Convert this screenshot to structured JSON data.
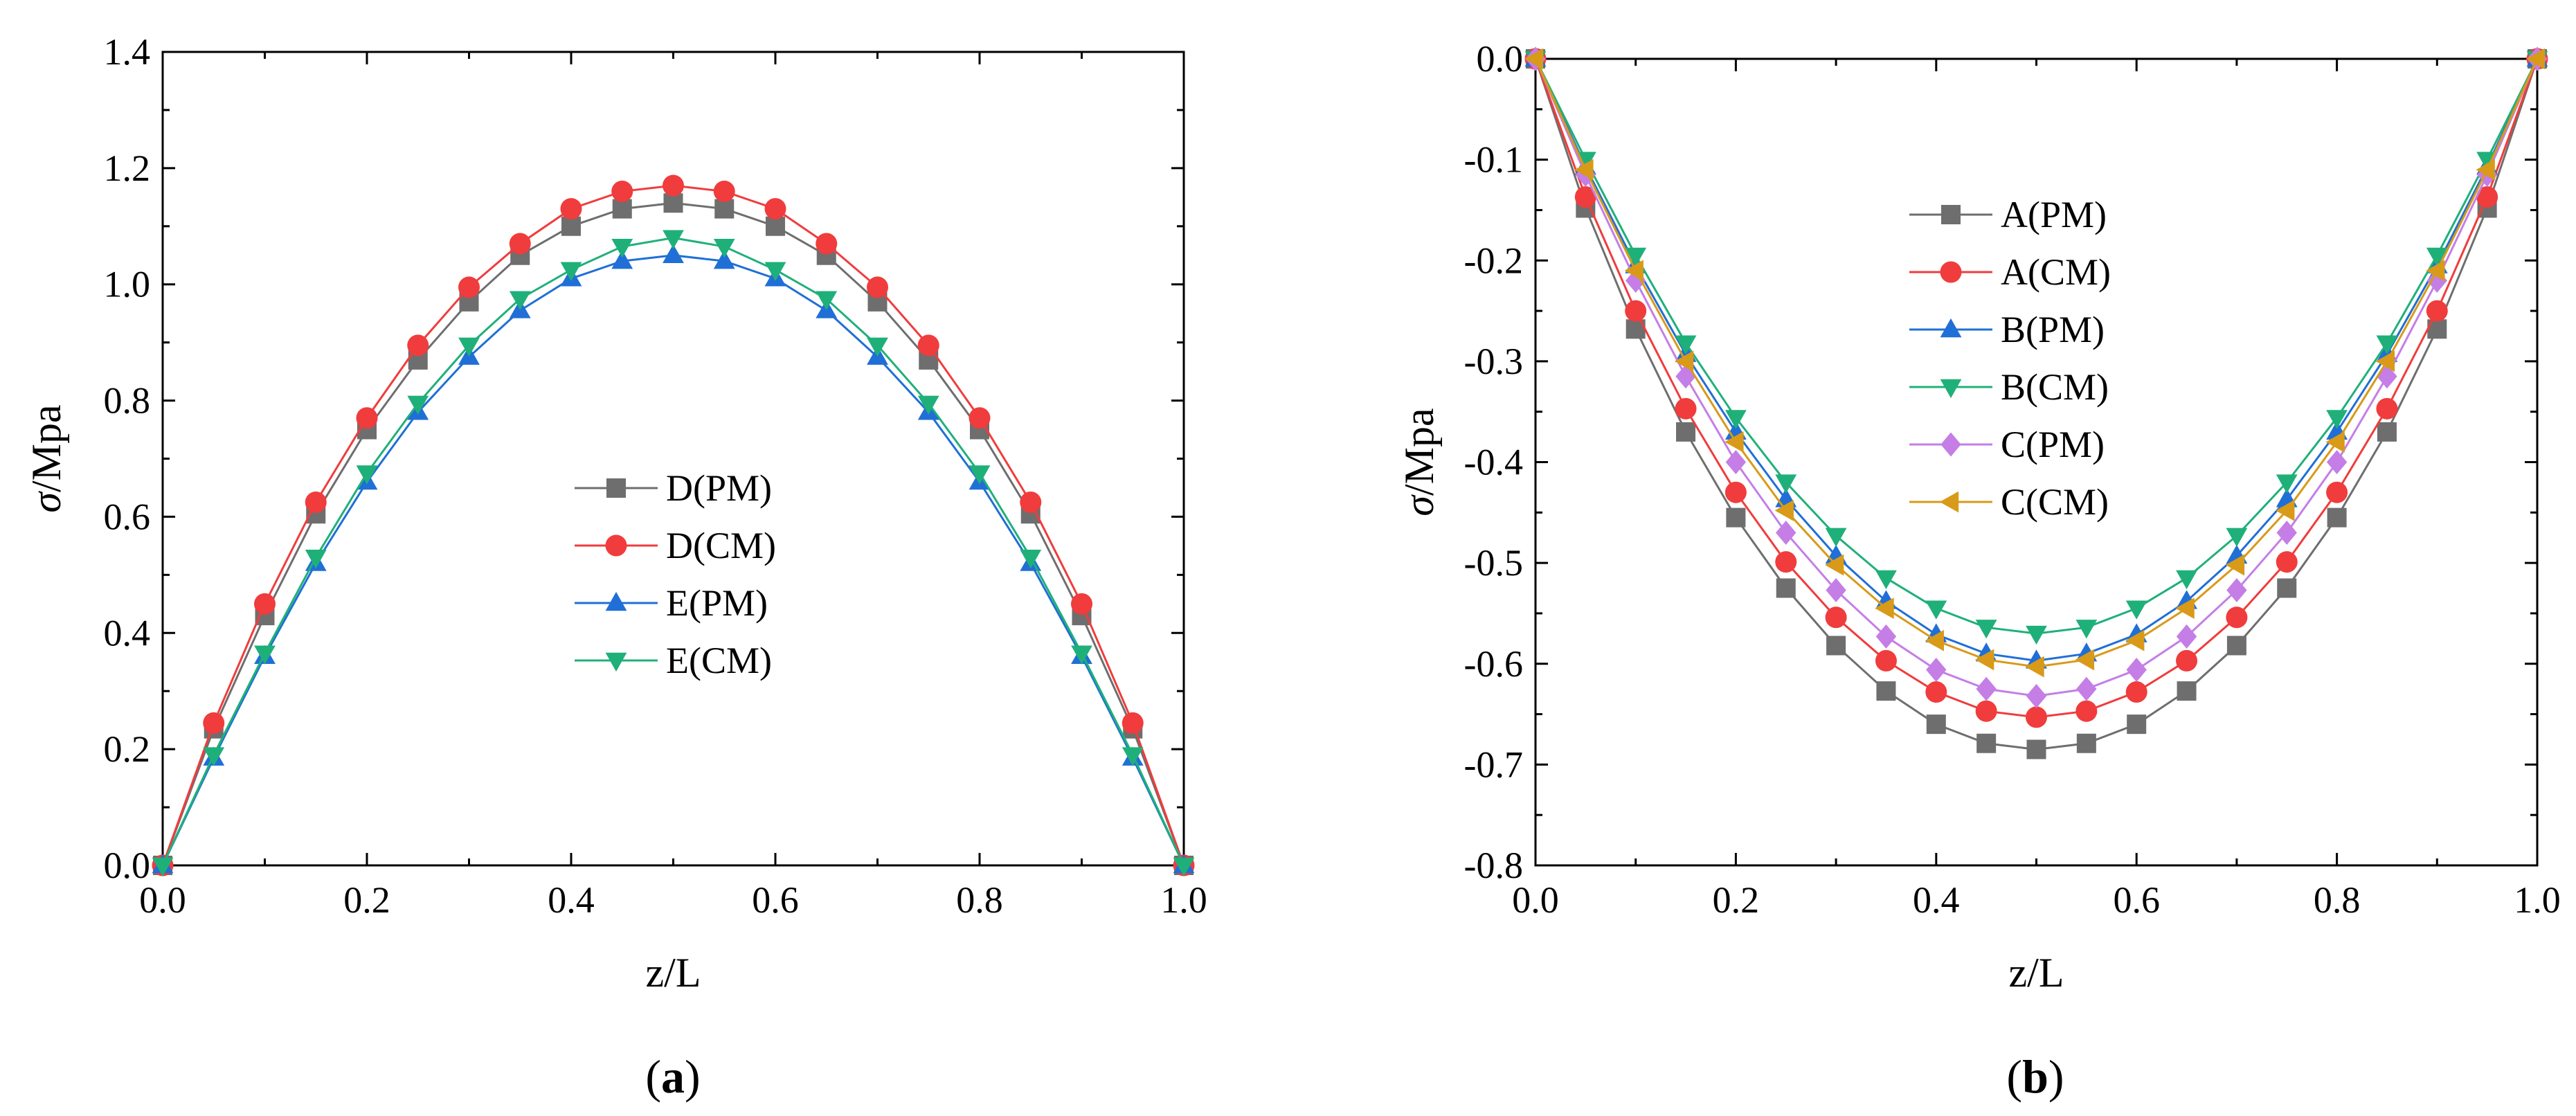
{
  "chart_data": [
    {
      "id": "a",
      "type": "line",
      "panel_label": "(a)",
      "panel_letter": "a",
      "xlabel": "z/L",
      "ylabel_sigma": "σ",
      "ylabel_rest": "/Mpa",
      "xlim": [
        0,
        1
      ],
      "ylim": [
        0,
        1.4
      ],
      "xticks": [
        "0.0",
        "0.2",
        "0.4",
        "0.6",
        "0.8",
        "1.0"
      ],
      "xtick_values": [
        0,
        0.2,
        0.4,
        0.6,
        0.8,
        1.0
      ],
      "yticks": [
        "0.0",
        "0.2",
        "0.4",
        "0.6",
        "0.8",
        "1.0",
        "1.2",
        "1.4"
      ],
      "ytick_values": [
        0,
        0.2,
        0.4,
        0.6,
        0.8,
        1.0,
        1.2,
        1.4
      ],
      "x": [
        0,
        0.05,
        0.1,
        0.15,
        0.2,
        0.25,
        0.3,
        0.35,
        0.4,
        0.45,
        0.5,
        0.55,
        0.6,
        0.65,
        0.7,
        0.75,
        0.8,
        0.85,
        0.9,
        0.95,
        1.0
      ],
      "legend_position": "center-right",
      "series": [
        {
          "name": "D(PM)",
          "color": "#6e6e6e",
          "marker": "square",
          "values": [
            0,
            0.235,
            0.43,
            0.605,
            0.75,
            0.87,
            0.97,
            1.05,
            1.1,
            1.13,
            1.14,
            1.13,
            1.1,
            1.05,
            0.97,
            0.87,
            0.75,
            0.605,
            0.43,
            0.235,
            0
          ]
        },
        {
          "name": "D(CM)",
          "color": "#f03c3c",
          "marker": "circle",
          "values": [
            0,
            0.245,
            0.45,
            0.625,
            0.77,
            0.895,
            0.995,
            1.07,
            1.13,
            1.16,
            1.17,
            1.16,
            1.13,
            1.07,
            0.995,
            0.895,
            0.77,
            0.625,
            0.45,
            0.245,
            0
          ]
        },
        {
          "name": "E(PM)",
          "color": "#1f6fd6",
          "marker": "triangle-up",
          "values": [
            0,
            0.185,
            0.36,
            0.52,
            0.66,
            0.78,
            0.875,
            0.955,
            1.01,
            1.04,
            1.05,
            1.04,
            1.01,
            0.955,
            0.875,
            0.78,
            0.66,
            0.52,
            0.36,
            0.185,
            0
          ]
        },
        {
          "name": "E(CM)",
          "color": "#1fb07a",
          "marker": "triangle-down",
          "values": [
            0,
            0.19,
            0.365,
            0.53,
            0.675,
            0.795,
            0.895,
            0.975,
            1.025,
            1.065,
            1.08,
            1.065,
            1.025,
            0.975,
            0.895,
            0.795,
            0.675,
            0.53,
            0.365,
            0.19,
            0
          ]
        }
      ]
    },
    {
      "id": "b",
      "type": "line",
      "panel_label": "(b)",
      "panel_letter": "b",
      "xlabel": "z/L",
      "ylabel_sigma": "σ",
      "ylabel_rest": "/Mpa",
      "xlim": [
        0,
        1
      ],
      "ylim": [
        -0.8,
        0
      ],
      "xticks": [
        "0.0",
        "0.2",
        "0.4",
        "0.6",
        "0.8",
        "1.0"
      ],
      "xtick_values": [
        0,
        0.2,
        0.4,
        0.6,
        0.8,
        1.0
      ],
      "yticks": [
        "0.0",
        "-0.1",
        "-0.2",
        "-0.3",
        "-0.4",
        "-0.5",
        "-0.6",
        "-0.7",
        "-0.8"
      ],
      "ytick_values": [
        0,
        -0.1,
        -0.2,
        -0.3,
        -0.4,
        -0.5,
        -0.6,
        -0.7,
        -0.8
      ],
      "x": [
        0,
        0.05,
        0.1,
        0.15,
        0.2,
        0.25,
        0.3,
        0.35,
        0.4,
        0.45,
        0.5,
        0.55,
        0.6,
        0.65,
        0.7,
        0.75,
        0.8,
        0.85,
        0.9,
        0.95,
        1.0
      ],
      "legend_position": "top-center",
      "series": [
        {
          "name": "A(PM)",
          "color": "#6e6e6e",
          "marker": "square",
          "values": [
            0,
            -0.148,
            -0.268,
            -0.37,
            -0.455,
            -0.525,
            -0.582,
            -0.627,
            -0.66,
            -0.679,
            -0.685,
            -0.679,
            -0.66,
            -0.627,
            -0.582,
            -0.525,
            -0.455,
            -0.37,
            -0.268,
            -0.148,
            0
          ]
        },
        {
          "name": "A(CM)",
          "color": "#f03c3c",
          "marker": "circle",
          "values": [
            0,
            -0.137,
            -0.25,
            -0.347,
            -0.43,
            -0.499,
            -0.554,
            -0.597,
            -0.628,
            -0.647,
            -0.653,
            -0.647,
            -0.628,
            -0.597,
            -0.554,
            -0.499,
            -0.43,
            -0.347,
            -0.25,
            -0.137,
            0
          ]
        },
        {
          "name": "B(PM)",
          "color": "#1f6fd6",
          "marker": "triangle-up",
          "values": [
            0,
            -0.107,
            -0.205,
            -0.293,
            -0.37,
            -0.437,
            -0.493,
            -0.538,
            -0.571,
            -0.59,
            -0.597,
            -0.59,
            -0.571,
            -0.538,
            -0.493,
            -0.437,
            -0.37,
            -0.293,
            -0.205,
            -0.107,
            0
          ]
        },
        {
          "name": "B(CM)",
          "color": "#1fb07a",
          "marker": "triangle-down",
          "values": [
            0,
            -0.1,
            -0.195,
            -0.282,
            -0.356,
            -0.42,
            -0.473,
            -0.515,
            -0.545,
            -0.564,
            -0.57,
            -0.564,
            -0.545,
            -0.515,
            -0.473,
            -0.42,
            -0.356,
            -0.282,
            -0.195,
            -0.1,
            0
          ]
        },
        {
          "name": "C(PM)",
          "color": "#c47ee6",
          "marker": "diamond",
          "values": [
            0,
            -0.115,
            -0.22,
            -0.315,
            -0.4,
            -0.47,
            -0.527,
            -0.573,
            -0.606,
            -0.625,
            -0.632,
            -0.625,
            -0.606,
            -0.573,
            -0.527,
            -0.47,
            -0.4,
            -0.315,
            -0.22,
            -0.115,
            0
          ]
        },
        {
          "name": "C(CM)",
          "color": "#d89a18",
          "marker": "triangle-left",
          "values": [
            0,
            -0.11,
            -0.21,
            -0.3,
            -0.38,
            -0.448,
            -0.502,
            -0.545,
            -0.577,
            -0.596,
            -0.603,
            -0.596,
            -0.577,
            -0.545,
            -0.502,
            -0.448,
            -0.38,
            -0.3,
            -0.21,
            -0.11,
            0
          ]
        }
      ]
    }
  ]
}
